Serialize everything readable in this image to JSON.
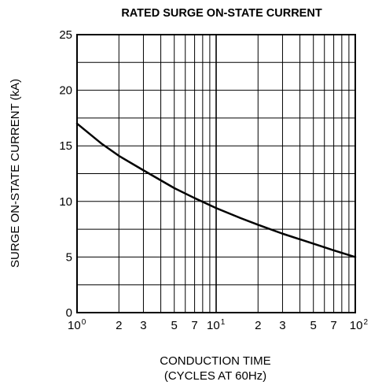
{
  "chart_data": {
    "type": "line",
    "title": "RATED SURGE ON-STATE CURRENT",
    "xlabel_lines": [
      "CONDUCTION TIME",
      "(CYCLES AT 60Hz)"
    ],
    "ylabel": "SURGE ON-STATE CURRENT  (kA)",
    "x_scale": "log",
    "xlim": [
      1,
      100
    ],
    "ylim": [
      0,
      25
    ],
    "grid": true,
    "x_ticks": [
      {
        "base": "10",
        "exp": "0"
      },
      {
        "base": "2",
        "exp": ""
      },
      {
        "base": "3",
        "exp": ""
      },
      {
        "base": "5",
        "exp": ""
      },
      {
        "base": "7",
        "exp": ""
      },
      {
        "base": "10",
        "exp": "1"
      },
      {
        "base": "2",
        "exp": ""
      },
      {
        "base": "3",
        "exp": ""
      },
      {
        "base": "5",
        "exp": ""
      },
      {
        "base": "7",
        "exp": ""
      },
      {
        "base": "10",
        "exp": "2"
      }
    ],
    "x_tick_values": [
      1,
      2,
      3,
      5,
      7,
      10,
      20,
      30,
      50,
      70,
      100
    ],
    "x_grid_values": [
      1,
      2,
      3,
      4,
      5,
      6,
      7,
      8,
      9,
      10,
      20,
      30,
      40,
      50,
      60,
      70,
      80,
      90,
      100
    ],
    "y_ticks": [
      "0",
      "5",
      "10",
      "15",
      "20",
      "25"
    ],
    "y_tick_values": [
      0,
      5,
      10,
      15,
      20,
      25
    ],
    "y_grid_values": [
      0,
      2.5,
      5,
      7.5,
      10,
      12.5,
      15,
      17.5,
      20,
      22.5,
      25
    ],
    "series": [
      {
        "x": [
          1,
          1.5,
          2,
          3,
          5,
          7,
          10,
          15,
          20,
          30,
          50,
          70,
          100
        ],
        "y": [
          17.0,
          15.2,
          14.1,
          12.8,
          11.2,
          10.3,
          9.4,
          8.5,
          7.9,
          7.1,
          6.2,
          5.6,
          5.0
        ]
      }
    ]
  }
}
